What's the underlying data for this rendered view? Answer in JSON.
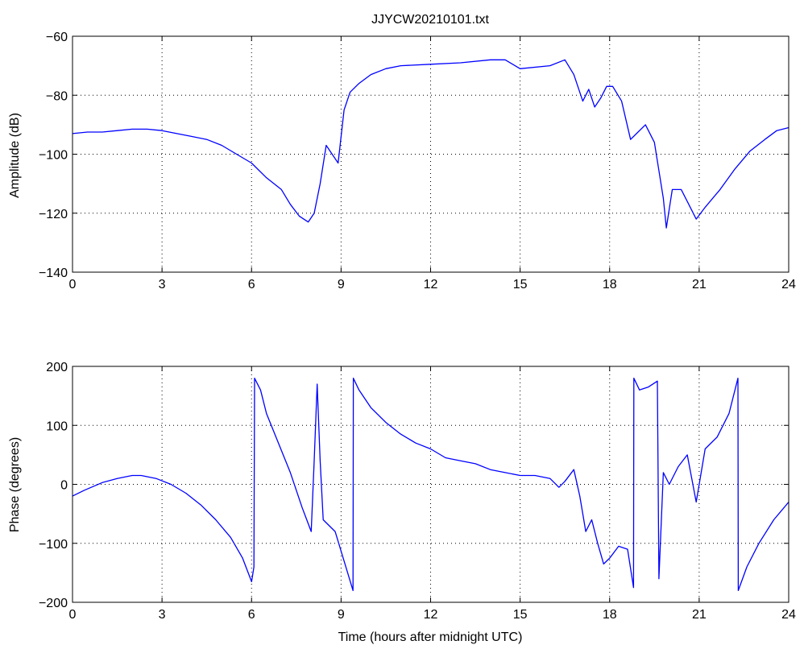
{
  "title": "JJYCW20210101.txt",
  "line_color": "#0000ff",
  "grid": true,
  "chart_data": [
    {
      "type": "line",
      "title": "JJYCW20210101.txt",
      "xlabel": "",
      "ylabel": "Amplitude (dB)",
      "xlim": [
        0,
        24
      ],
      "ylim": [
        -140,
        -60
      ],
      "xticks": [
        "0",
        "3",
        "6",
        "9",
        "12",
        "15",
        "18",
        "21",
        "24"
      ],
      "yticks": [
        "−60",
        "−80",
        "−100",
        "−120",
        "−140"
      ],
      "series": [
        {
          "x": [
            0,
            0.5,
            1,
            1.5,
            2,
            2.5,
            3,
            3.5,
            4,
            4.5,
            5,
            5.5,
            6,
            6.5,
            7,
            7.3,
            7.6,
            7.9,
            8.1,
            8.3,
            8.5,
            8.7,
            8.9,
            9.1,
            9.3,
            9.6,
            10,
            10.5,
            11,
            12,
            13,
            14,
            14.5,
            15,
            16,
            16.5,
            16.8,
            17.1,
            17.3,
            17.5,
            17.7,
            17.9,
            18.1,
            18.4,
            18.7,
            18.9,
            19.2,
            19.5,
            19.8,
            19.9,
            20.1,
            20.4,
            20.7,
            20.9,
            21.2,
            21.7,
            22.2,
            22.7,
            23.2,
            23.6,
            24
          ],
          "y": [
            -93,
            -92.5,
            -92.5,
            -92,
            -91.5,
            -91.5,
            -92,
            -93,
            -94,
            -95,
            -97,
            -100,
            -103,
            -108,
            -112,
            -117,
            -121,
            -123,
            -120,
            -110,
            -97,
            -100,
            -103,
            -85,
            -79,
            -76,
            -73,
            -71,
            -70,
            -69.5,
            -69,
            -68,
            -68,
            -71,
            -70,
            -68,
            -73,
            -82,
            -78,
            -84,
            -81,
            -77,
            -77,
            -82,
            -95,
            -93,
            -90,
            -96,
            -115,
            -125,
            -112,
            -112,
            -118,
            -122,
            -118,
            -112,
            -105,
            -99,
            -95,
            -92,
            -91
          ]
        }
      ]
    },
    {
      "type": "line",
      "title": "",
      "xlabel": "Time (hours after midnight UTC)",
      "ylabel": "Phase (degrees)",
      "xlim": [
        0,
        24
      ],
      "ylim": [
        -200,
        200
      ],
      "xticks": [
        "0",
        "3",
        "6",
        "9",
        "12",
        "15",
        "18",
        "21",
        "24"
      ],
      "yticks": [
        "200",
        "100",
        "0",
        "−100",
        "−200"
      ],
      "series": [
        {
          "x": [
            0,
            0.4,
            1,
            1.5,
            2,
            2.3,
            2.8,
            3.3,
            3.8,
            4.3,
            4.8,
            5.3,
            5.7,
            6,
            6.08,
            6.1,
            6.3,
            6.5,
            6.9,
            7.3,
            7.7,
            8.0,
            8.1,
            8.2,
            8.3,
            8.4,
            8.8,
            9.1,
            9.4,
            9.41,
            9.6,
            10,
            10.5,
            11,
            11.5,
            12,
            12.5,
            13,
            13.5,
            14,
            14.5,
            15,
            15.5,
            16,
            16.3,
            16.5,
            16.8,
            17.0,
            17.2,
            17.4,
            17.6,
            17.8,
            18.0,
            18.3,
            18.6,
            18.8,
            18.81,
            19,
            19.3,
            19.6,
            19.65,
            19.8,
            20.0,
            20.3,
            20.6,
            20.9,
            21.2,
            21.6,
            22.0,
            22.3,
            22.31,
            22.6,
            23.0,
            23.5,
            24
          ],
          "y": [
            -20,
            -10,
            3,
            10,
            15,
            15,
            10,
            0,
            -15,
            -35,
            -60,
            -90,
            -125,
            -165,
            -140,
            180,
            160,
            120,
            70,
            20,
            -40,
            -80,
            40,
            170,
            40,
            -60,
            -80,
            -130,
            -180,
            180,
            160,
            130,
            105,
            85,
            70,
            60,
            45,
            40,
            35,
            25,
            20,
            15,
            15,
            10,
            -5,
            5,
            25,
            -20,
            -80,
            -60,
            -100,
            -135,
            -125,
            -105,
            -110,
            -175,
            180,
            160,
            165,
            175,
            -160,
            20,
            0,
            30,
            50,
            -30,
            60,
            80,
            120,
            180,
            -180,
            -140,
            -100,
            -60,
            -30
          ]
        }
      ]
    }
  ]
}
